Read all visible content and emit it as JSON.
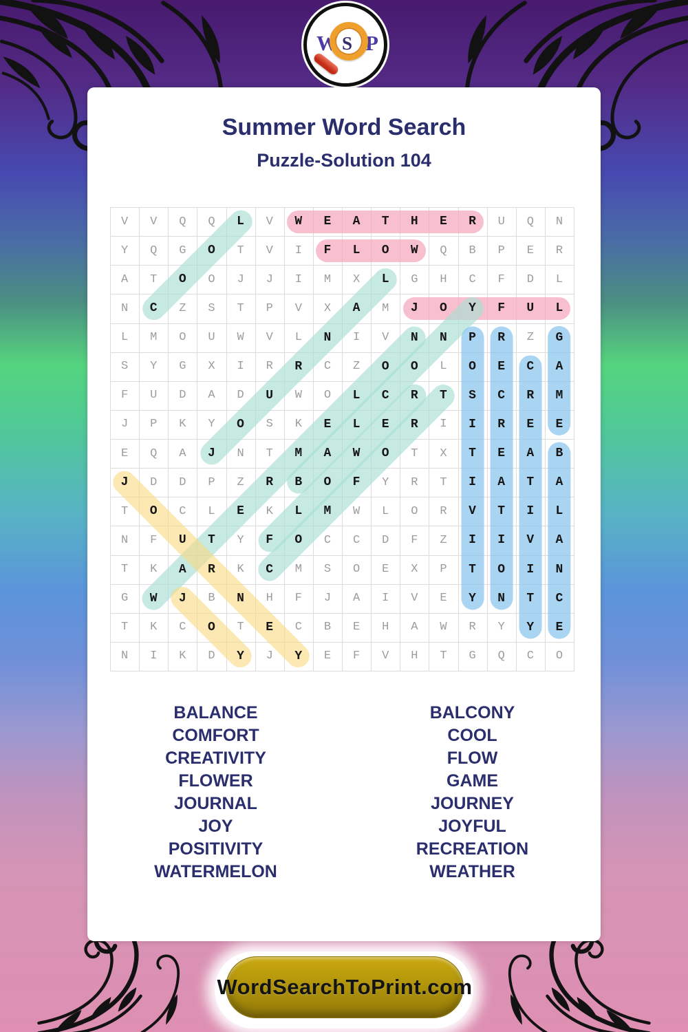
{
  "logo": {
    "letters": [
      "W",
      "S",
      "P"
    ]
  },
  "header": {
    "title": "Summer Word Search",
    "subtitle": "Puzzle-Solution 104"
  },
  "grid": {
    "rows": [
      "VVQQLVWEATHERUQN",
      "YQGOTVIFLOWQBPER",
      "ATOOJJIMXLGHCFDL",
      "NCZSTPVXAMJOYFUL",
      "LMOUWVLNIVNNPRZG",
      "SYGXIRRCZOOLOECA",
      "FUDADUWOLCRTSCRM",
      "JPKYOSKELERIIREE",
      "EQAJNTMAWOTXTEAB",
      "JDDPZRBOFYRTIATA",
      "TOCLEKLMWLORVTIL",
      "NFUTYFOCCDFZIIVA",
      "TKARKCMSOEXPTOIN",
      "GWJBNHFJAIVEYNTC",
      "TKCOTECBEHAWRYYE",
      "NIKDYJYEFVHTGQCO"
    ],
    "size": {
      "rows": 16,
      "cols": 16
    }
  },
  "solutions": [
    {
      "word": "WEATHER",
      "start": [
        1,
        7
      ],
      "end": [
        1,
        13
      ],
      "color": "pink"
    },
    {
      "word": "FLOW",
      "start": [
        2,
        8
      ],
      "end": [
        2,
        11
      ],
      "color": "pink"
    },
    {
      "word": "JOYFUL",
      "start": [
        4,
        11
      ],
      "end": [
        4,
        16
      ],
      "color": "pink"
    },
    {
      "word": "COOL",
      "start": [
        4,
        2
      ],
      "end": [
        1,
        5
      ],
      "color": "teal"
    },
    {
      "word": "JOURNAL",
      "start": [
        9,
        4
      ],
      "end": [
        3,
        10
      ],
      "color": "teal"
    },
    {
      "word": "WATERMELON",
      "start": [
        14,
        2
      ],
      "end": [
        5,
        11
      ],
      "color": "teal"
    },
    {
      "word": "FLOWER",
      "start": [
        12,
        6
      ],
      "end": [
        7,
        11
      ],
      "color": "teal"
    },
    {
      "word": "COMFORT",
      "start": [
        13,
        6
      ],
      "end": [
        7,
        12
      ],
      "color": "teal"
    },
    {
      "word": "BALCONY",
      "start": [
        10,
        7
      ],
      "end": [
        4,
        13
      ],
      "color": "teal"
    },
    {
      "word": "JOURNEY",
      "start": [
        10,
        1
      ],
      "end": [
        16,
        7
      ],
      "color": "yellow"
    },
    {
      "word": "JOY",
      "start": [
        14,
        3
      ],
      "end": [
        16,
        5
      ],
      "color": "yellow"
    },
    {
      "word": "POSITIVITY",
      "start": [
        5,
        13
      ],
      "end": [
        14,
        13
      ],
      "color": "blue"
    },
    {
      "word": "RECREATION",
      "start": [
        5,
        14
      ],
      "end": [
        14,
        14
      ],
      "color": "blue"
    },
    {
      "word": "CREATIVITY",
      "start": [
        6,
        15
      ],
      "end": [
        15,
        15
      ],
      "color": "blue"
    },
    {
      "word": "GAME",
      "start": [
        5,
        16
      ],
      "end": [
        8,
        16
      ],
      "color": "blue"
    },
    {
      "word": "BALANCE",
      "start": [
        9,
        16
      ],
      "end": [
        15,
        16
      ],
      "color": "blue"
    }
  ],
  "word_list": {
    "left": [
      "BALANCE",
      "COMFORT",
      "CREATIVITY",
      "FLOWER",
      "JOURNAL",
      "JOY",
      "POSITIVITY",
      "WATERMELON"
    ],
    "right": [
      "BALCONY",
      "COOL",
      "FLOW",
      "GAME",
      "JOURNEY",
      "JOYFUL",
      "RECREATION",
      "WEATHER"
    ]
  },
  "footer": {
    "site_label": "WordSearchToPrint.com"
  },
  "colors": {
    "navy_text": "#2b2e6d",
    "grid_letter_gray": "#9c9c9c",
    "grid_letter_solved": "#161616",
    "grid_line": "#dcdcdc",
    "highlights": {
      "pink": "rgba(245,168,188,0.72)",
      "teal": "rgba(167,223,210,0.65)",
      "blue": "rgba(134,195,236,0.70)",
      "yellow": "rgba(248,218,132,0.62)"
    },
    "button_gold": "#b3930c",
    "button_text": "#141414",
    "bg_top_purple": "#471a6e",
    "bg_green": "#55d47e",
    "bg_bottom_pink": "#de8fb2",
    "logo_purple": "#4c3ba6",
    "lens_orange": "#efa02c",
    "handle_red": "#c22b16"
  }
}
